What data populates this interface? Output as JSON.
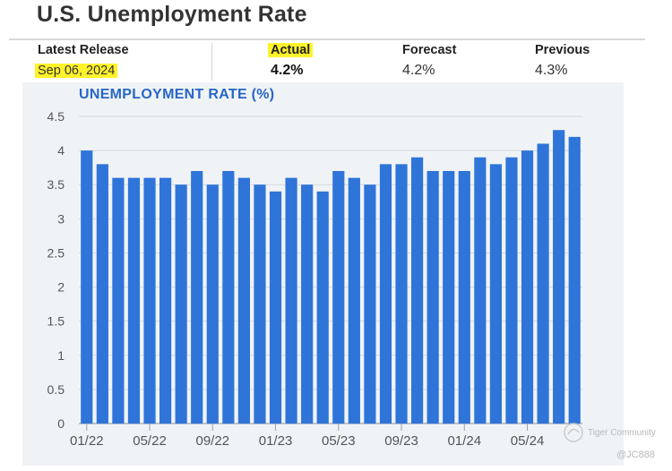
{
  "page_title": "U.S. Unemployment Rate",
  "stats": {
    "latest_release": {
      "label": "Latest Release",
      "value": "Sep 06, 2024"
    },
    "actual": {
      "label": "Actual",
      "value": "4.2%"
    },
    "forecast": {
      "label": "Forecast",
      "value": "4.2%"
    },
    "previous": {
      "label": "Previous",
      "value": "4.3%"
    }
  },
  "watermark": {
    "brand": "Tiger Community",
    "handle": "@JC888"
  },
  "colors": {
    "bar": "#2f74d8",
    "title": "#2766c6",
    "highlight": "#fff22a",
    "panel": "#f0f3f6"
  },
  "chart_data": {
    "type": "bar",
    "title": "UNEMPLOYMENT RATE (%)",
    "xlabel": "",
    "ylabel": "",
    "ylim": [
      0,
      4.5
    ],
    "yticks": [
      0,
      0.5,
      1,
      1.5,
      2,
      2.5,
      3,
      3.5,
      4,
      4.5
    ],
    "grid": true,
    "categories": [
      "01/22",
      "02/22",
      "03/22",
      "04/22",
      "05/22",
      "06/22",
      "07/22",
      "08/22",
      "09/22",
      "10/22",
      "11/22",
      "12/22",
      "01/23",
      "02/23",
      "03/23",
      "04/23",
      "05/23",
      "06/23",
      "07/23",
      "08/23",
      "09/23",
      "10/23",
      "11/23",
      "12/23",
      "01/24",
      "02/24",
      "03/24",
      "04/24",
      "05/24",
      "06/24",
      "07/24",
      "08/24"
    ],
    "values": [
      4.0,
      3.8,
      3.6,
      3.6,
      3.6,
      3.6,
      3.5,
      3.7,
      3.5,
      3.7,
      3.6,
      3.5,
      3.4,
      3.6,
      3.5,
      3.4,
      3.7,
      3.6,
      3.5,
      3.8,
      3.8,
      3.9,
      3.7,
      3.7,
      3.7,
      3.9,
      3.8,
      3.9,
      4.0,
      4.1,
      4.3,
      4.2
    ],
    "xtick_labels": [
      "01/22",
      "05/22",
      "09/22",
      "01/23",
      "05/23",
      "09/23",
      "01/24",
      "05/24"
    ]
  }
}
